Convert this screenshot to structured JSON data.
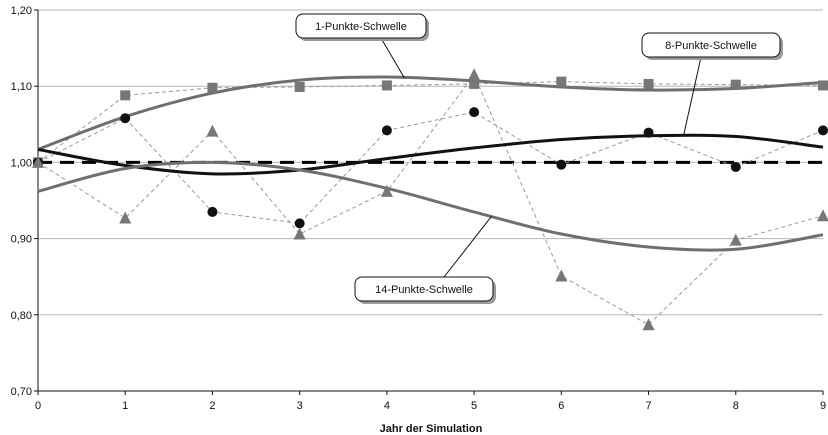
{
  "chart_data": {
    "type": "line",
    "title": "",
    "xlabel": "Jahr der Simulation",
    "ylabel": "",
    "xlim": [
      0,
      9
    ],
    "ylim": [
      0.7,
      1.2
    ],
    "x_ticks": [
      "0",
      "1",
      "2",
      "3",
      "4",
      "5",
      "6",
      "7",
      "8",
      "9"
    ],
    "y_ticks": [
      "0,70",
      "0,80",
      "0,90",
      "1,00",
      "1,10",
      "1,20"
    ],
    "grid": "horizontal",
    "reference_line": {
      "y": 1.0,
      "style": "dashed",
      "color": "#000000"
    },
    "x": [
      0,
      1,
      2,
      3,
      4,
      5,
      6,
      7,
      8,
      9
    ],
    "series": [
      {
        "marker": "square",
        "color": "#777777",
        "values": [
          1.0,
          1.088,
          1.098,
          1.099,
          1.101,
          1.103,
          1.106,
          1.103,
          1.102,
          1.101
        ],
        "trend": [
          1.017,
          1.06,
          1.091,
          1.108,
          1.112,
          1.107,
          1.099,
          1.095,
          1.097,
          1.105
        ],
        "trend_label": "1-Punkte-Schwelle"
      },
      {
        "marker": "circle",
        "color": "#111111",
        "values": [
          1.0,
          1.058,
          0.935,
          0.92,
          1.042,
          1.066,
          0.997,
          1.039,
          0.994,
          1.042
        ],
        "trend": [
          1.017,
          0.996,
          0.985,
          0.99,
          1.005,
          1.019,
          1.03,
          1.035,
          1.034,
          1.02
        ],
        "trend_label": "8-Punkte-Schwelle"
      },
      {
        "marker": "triangle",
        "color": "#777777",
        "values": [
          1.0,
          0.927,
          1.041,
          0.906,
          0.962,
          1.115,
          0.851,
          0.787,
          0.898,
          0.93
        ],
        "trend": [
          0.962,
          0.992,
          1.0,
          0.99,
          0.966,
          0.935,
          0.906,
          0.889,
          0.886,
          0.905
        ],
        "trend_label": "14-Punkte-Schwelle"
      }
    ]
  }
}
